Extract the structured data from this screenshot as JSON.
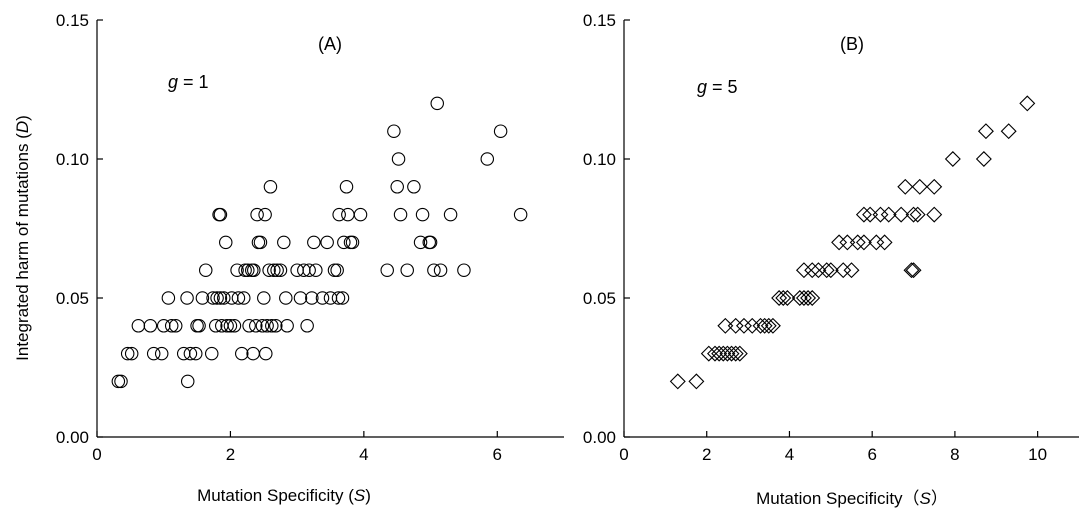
{
  "figure": {
    "ylabel_main": "Integrated harm of mutations (",
    "ylabel_var": "D",
    "ylabel_close": ")"
  },
  "chart_data": [
    {
      "type": "scatter",
      "panel_title": "(A)",
      "annotation": {
        "var": "g",
        "text": " = 1"
      },
      "xlabel": {
        "main": "Mutation Specificity (",
        "var": "S",
        "close": ")"
      },
      "ylabel": "Integrated harm of mutations (D)",
      "xlim": [
        0,
        7
      ],
      "ylim": [
        0,
        0.15
      ],
      "xticks": [
        0,
        2,
        4,
        6
      ],
      "xtick_labels": [
        "0",
        "2",
        "4",
        "6"
      ],
      "yticks": [
        0,
        0.05,
        0.1,
        0.15
      ],
      "ytick_labels": [
        "0.00",
        "0.05",
        "0.10",
        "0.15"
      ],
      "grid": false,
      "marker": "circle",
      "series": [
        {
          "points": [
            [
              0.32,
              0.02
            ],
            [
              0.36,
              0.02
            ],
            [
              0.46,
              0.03
            ],
            [
              0.52,
              0.03
            ],
            [
              0.62,
              0.04
            ],
            [
              0.8,
              0.04
            ],
            [
              0.85,
              0.03
            ],
            [
              0.97,
              0.03
            ],
            [
              1.0,
              0.04
            ],
            [
              1.07,
              0.05
            ],
            [
              1.12,
              0.04
            ],
            [
              1.18,
              0.04
            ],
            [
              1.3,
              0.03
            ],
            [
              1.35,
              0.05
            ],
            [
              1.36,
              0.02
            ],
            [
              1.4,
              0.03
            ],
            [
              1.48,
              0.03
            ],
            [
              1.5,
              0.04
            ],
            [
              1.53,
              0.04
            ],
            [
              1.58,
              0.05
            ],
            [
              1.63,
              0.06
            ],
            [
              1.72,
              0.03
            ],
            [
              1.74,
              0.05
            ],
            [
              1.78,
              0.04
            ],
            [
              1.8,
              0.05
            ],
            [
              1.83,
              0.08
            ],
            [
              1.85,
              0.08
            ],
            [
              1.85,
              0.05
            ],
            [
              1.87,
              0.04
            ],
            [
              1.9,
              0.05
            ],
            [
              1.93,
              0.07
            ],
            [
              1.95,
              0.04
            ],
            [
              2.0,
              0.04
            ],
            [
              2.02,
              0.05
            ],
            [
              2.06,
              0.04
            ],
            [
              2.1,
              0.06
            ],
            [
              2.12,
              0.05
            ],
            [
              2.17,
              0.03
            ],
            [
              2.2,
              0.05
            ],
            [
              2.22,
              0.06
            ],
            [
              2.26,
              0.06
            ],
            [
              2.28,
              0.04
            ],
            [
              2.32,
              0.06
            ],
            [
              2.34,
              0.03
            ],
            [
              2.35,
              0.06
            ],
            [
              2.38,
              0.04
            ],
            [
              2.4,
              0.08
            ],
            [
              2.42,
              0.07
            ],
            [
              2.45,
              0.07
            ],
            [
              2.48,
              0.04
            ],
            [
              2.5,
              0.05
            ],
            [
              2.52,
              0.08
            ],
            [
              2.53,
              0.03
            ],
            [
              2.55,
              0.04
            ],
            [
              2.58,
              0.06
            ],
            [
              2.6,
              0.09
            ],
            [
              2.62,
              0.04
            ],
            [
              2.65,
              0.06
            ],
            [
              2.68,
              0.04
            ],
            [
              2.7,
              0.06
            ],
            [
              2.75,
              0.06
            ],
            [
              2.8,
              0.07
            ],
            [
              2.83,
              0.05
            ],
            [
              2.85,
              0.04
            ],
            [
              3.0,
              0.06
            ],
            [
              3.05,
              0.05
            ],
            [
              3.1,
              0.06
            ],
            [
              3.15,
              0.04
            ],
            [
              3.18,
              0.06
            ],
            [
              3.22,
              0.05
            ],
            [
              3.25,
              0.07
            ],
            [
              3.28,
              0.06
            ],
            [
              3.38,
              0.05
            ],
            [
              3.45,
              0.07
            ],
            [
              3.5,
              0.05
            ],
            [
              3.56,
              0.06
            ],
            [
              3.6,
              0.06
            ],
            [
              3.62,
              0.05
            ],
            [
              3.63,
              0.08
            ],
            [
              3.68,
              0.05
            ],
            [
              3.7,
              0.07
            ],
            [
              3.74,
              0.09
            ],
            [
              3.76,
              0.08
            ],
            [
              3.8,
              0.07
            ],
            [
              3.83,
              0.07
            ],
            [
              3.95,
              0.08
            ],
            [
              4.35,
              0.06
            ],
            [
              4.45,
              0.11
            ],
            [
              4.5,
              0.09
            ],
            [
              4.52,
              0.1
            ],
            [
              4.55,
              0.08
            ],
            [
              4.65,
              0.06
            ],
            [
              4.75,
              0.09
            ],
            [
              4.85,
              0.07
            ],
            [
              4.88,
              0.08
            ],
            [
              4.98,
              0.07
            ],
            [
              5.0,
              0.07
            ],
            [
              5.05,
              0.06
            ],
            [
              5.1,
              0.12
            ],
            [
              5.15,
              0.06
            ],
            [
              5.3,
              0.08
            ],
            [
              5.5,
              0.06
            ],
            [
              5.85,
              0.1
            ],
            [
              6.05,
              0.11
            ],
            [
              6.35,
              0.08
            ]
          ]
        }
      ]
    },
    {
      "type": "scatter",
      "panel_title": "(B)",
      "annotation": {
        "var": "g",
        "text": " = 5"
      },
      "xlabel": {
        "main": "Mutation Specificity（",
        "var": "S",
        "close": "）"
      },
      "ylabel": "",
      "xlim": [
        0,
        11
      ],
      "ylim": [
        0,
        0.15
      ],
      "xticks": [
        0,
        2,
        4,
        6,
        8,
        10
      ],
      "xtick_labels": [
        "0",
        "2",
        "4",
        "6",
        "8",
        "10"
      ],
      "yticks": [
        0,
        0.05,
        0.1,
        0.15
      ],
      "ytick_labels": [
        "0.00",
        "0.05",
        "0.10",
        "0.15"
      ],
      "grid": false,
      "marker": "diamond",
      "series": [
        {
          "points": [
            [
              1.3,
              0.02
            ],
            [
              1.75,
              0.02
            ],
            [
              2.05,
              0.03
            ],
            [
              2.2,
              0.03
            ],
            [
              2.3,
              0.03
            ],
            [
              2.4,
              0.03
            ],
            [
              2.5,
              0.03
            ],
            [
              2.6,
              0.03
            ],
            [
              2.7,
              0.03
            ],
            [
              2.8,
              0.03
            ],
            [
              2.45,
              0.04
            ],
            [
              2.7,
              0.04
            ],
            [
              2.9,
              0.04
            ],
            [
              3.1,
              0.04
            ],
            [
              3.3,
              0.04
            ],
            [
              3.4,
              0.04
            ],
            [
              3.5,
              0.04
            ],
            [
              3.6,
              0.04
            ],
            [
              3.75,
              0.05
            ],
            [
              3.85,
              0.05
            ],
            [
              3.95,
              0.05
            ],
            [
              4.25,
              0.05
            ],
            [
              4.35,
              0.05
            ],
            [
              4.45,
              0.05
            ],
            [
              4.55,
              0.05
            ],
            [
              4.35,
              0.06
            ],
            [
              4.55,
              0.06
            ],
            [
              4.7,
              0.06
            ],
            [
              4.9,
              0.06
            ],
            [
              5.0,
              0.06
            ],
            [
              5.3,
              0.06
            ],
            [
              5.5,
              0.06
            ],
            [
              5.2,
              0.07
            ],
            [
              5.4,
              0.07
            ],
            [
              5.65,
              0.07
            ],
            [
              5.8,
              0.07
            ],
            [
              6.1,
              0.07
            ],
            [
              6.3,
              0.07
            ],
            [
              5.8,
              0.08
            ],
            [
              5.95,
              0.08
            ],
            [
              6.2,
              0.08
            ],
            [
              6.4,
              0.08
            ],
            [
              6.7,
              0.08
            ],
            [
              7.0,
              0.08
            ],
            [
              7.1,
              0.08
            ],
            [
              7.5,
              0.08
            ],
            [
              6.95,
              0.06
            ],
            [
              7.0,
              0.06
            ],
            [
              6.8,
              0.09
            ],
            [
              7.15,
              0.09
            ],
            [
              7.5,
              0.09
            ],
            [
              7.95,
              0.1
            ],
            [
              8.7,
              0.1
            ],
            [
              8.75,
              0.11
            ],
            [
              9.3,
              0.11
            ],
            [
              9.75,
              0.12
            ]
          ]
        }
      ]
    }
  ]
}
